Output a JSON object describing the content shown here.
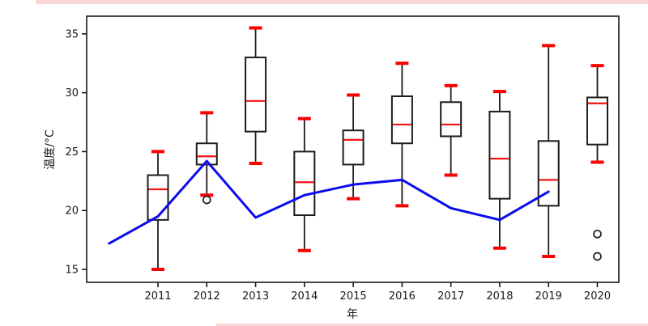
{
  "page": {
    "top_banner_color": "#fcd7d7",
    "bottom_banner_color": "#fcd7d7"
  },
  "chart_data": {
    "type": "boxplot",
    "title": "",
    "xlabel": "年",
    "ylabel": "温度/°C",
    "xlim": [
      2009.54,
      2020.44
    ],
    "ylim": [
      13.9,
      36.5
    ],
    "yticks": [
      15,
      20,
      25,
      30,
      35
    ],
    "grid": false,
    "legend": "none",
    "categories": [
      "2011",
      "2012",
      "2013",
      "2014",
      "2015",
      "2016",
      "2017",
      "2018",
      "2019",
      "2020"
    ],
    "boxes": [
      {
        "year": "2011",
        "low": 15.0,
        "q1": 19.2,
        "median": 21.8,
        "q3": 23.0,
        "high": 25.0,
        "outliers": []
      },
      {
        "year": "2012",
        "low": 21.3,
        "q1": 23.9,
        "median": 24.6,
        "q3": 25.7,
        "high": 28.3,
        "outliers": [
          20.9
        ]
      },
      {
        "year": "2013",
        "low": 24.0,
        "q1": 26.7,
        "median": 29.3,
        "q3": 33.0,
        "high": 35.5,
        "outliers": []
      },
      {
        "year": "2014",
        "low": 16.6,
        "q1": 19.6,
        "median": 22.4,
        "q3": 25.0,
        "high": 27.8,
        "outliers": []
      },
      {
        "year": "2015",
        "low": 21.0,
        "q1": 23.9,
        "median": 26.0,
        "q3": 26.8,
        "high": 29.8,
        "outliers": []
      },
      {
        "year": "2016",
        "low": 20.4,
        "q1": 25.7,
        "median": 27.3,
        "q3": 29.7,
        "high": 32.5,
        "outliers": []
      },
      {
        "year": "2017",
        "low": 23.0,
        "q1": 26.3,
        "median": 27.3,
        "q3": 29.2,
        "high": 30.6,
        "outliers": []
      },
      {
        "year": "2018",
        "low": 16.8,
        "q1": 21.0,
        "median": 24.4,
        "q3": 28.4,
        "high": 30.1,
        "outliers": []
      },
      {
        "year": "2019",
        "low": 16.1,
        "q1": 20.4,
        "median": 22.6,
        "q3": 25.9,
        "high": 34.0,
        "outliers": []
      },
      {
        "year": "2020",
        "low": 24.1,
        "q1": 25.6,
        "median": 29.1,
        "q3": 29.6,
        "high": 32.3,
        "outliers": [
          18.0,
          16.1
        ]
      }
    ],
    "line": {
      "name": "annual-mean-temperature-line",
      "x": [
        2010,
        2011,
        2012,
        2013,
        2014,
        2015,
        2016,
        2017,
        2018,
        2019
      ],
      "values": [
        17.2,
        19.5,
        24.2,
        19.4,
        21.3,
        22.2,
        22.6,
        20.2,
        19.2,
        21.6
      ],
      "color": "#0b0bee"
    },
    "colors": {
      "axis": "#1a1a1a",
      "box": "#1c1c1c",
      "cap": "#fa0000",
      "median": "#f51414",
      "line": "#0b0bee"
    }
  }
}
